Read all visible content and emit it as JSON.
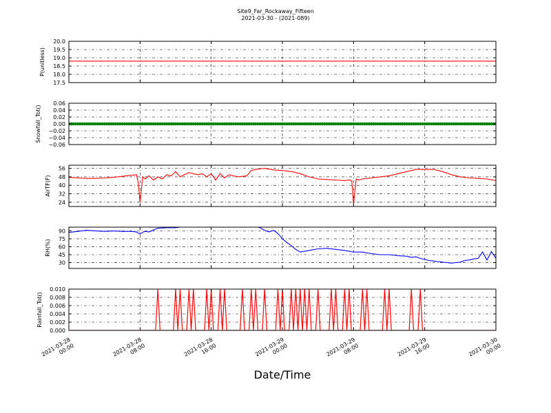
{
  "figure": {
    "title_line1": "Site9_Far_Rockaway_Fifteen",
    "title_line2": "2021-03-30 - (2021-089)",
    "xlabel": "Date/Time"
  },
  "chart_data": [
    {
      "type": "line",
      "ylabel": "P(unitless)",
      "ylim": [
        17.5,
        20.0
      ],
      "yticks": [
        "20.0",
        "19.5",
        "19.0",
        "18.5",
        "18.0",
        "17.5"
      ],
      "grid": true,
      "color": "#ff0000",
      "x_range": [
        "2021-03-28 00:00",
        "2021-03-30 00:00"
      ],
      "series": [
        {
          "x_hours": [
            0,
            48
          ],
          "values": [
            18.8,
            18.8
          ]
        }
      ]
    },
    {
      "type": "scatter",
      "ylabel": "Snowfall_Tot()",
      "ylim": [
        -0.06,
        0.06
      ],
      "yticks": [
        "0.06",
        "0.04",
        "0.02",
        "0.00",
        "−0.02",
        "−0.04",
        "−0.06"
      ],
      "grid": true,
      "color": "#008000",
      "x_range": [
        "2021-03-28 00:00",
        "2021-03-30 00:00"
      ],
      "series": [
        {
          "constant_value": 0.0,
          "x_start_hours": 0,
          "x_end_hours": 48,
          "interval_minutes": 15
        }
      ]
    },
    {
      "type": "line",
      "ylabel": "AirTF(F)",
      "ylim": [
        20,
        59
      ],
      "yticks": [
        "56",
        "48",
        "40",
        "32",
        "24"
      ],
      "grid": true,
      "color": "#ff0000",
      "x_range": [
        "2021-03-28 00:00",
        "2021-03-30 00:00"
      ],
      "series": [
        {
          "x_hours": [
            0,
            1,
            2,
            3,
            4,
            5,
            6,
            7,
            7.6,
            7.8,
            8,
            8.3,
            8.6,
            9,
            9.5,
            10,
            10.5,
            11,
            11.5,
            12,
            12.5,
            13,
            13.5,
            14,
            14.5,
            15,
            15.5,
            16,
            16.5,
            17,
            17.5,
            18,
            18.5,
            19,
            19.5,
            20,
            20.5,
            21,
            22,
            23,
            24,
            25,
            26,
            27,
            28,
            29,
            30,
            31,
            31.6,
            31.8,
            32,
            32.3,
            32.6,
            33,
            34,
            35,
            36,
            37,
            38,
            39,
            40,
            41,
            42,
            43,
            44,
            45,
            46,
            47,
            48
          ],
          "values": [
            47.5,
            47,
            46.5,
            46.5,
            47,
            47.5,
            48.5,
            49.5,
            50,
            42,
            24,
            48,
            46,
            49,
            45,
            48,
            46,
            50,
            49,
            53,
            48,
            50,
            52,
            51,
            50,
            51,
            48,
            51,
            45,
            51,
            47,
            50,
            49,
            48,
            48.5,
            49,
            54,
            55,
            56,
            54.5,
            54,
            53,
            51,
            48,
            46,
            45.5,
            45,
            44.5,
            45,
            44,
            22,
            46,
            45,
            46,
            47,
            48,
            49,
            51,
            53,
            55,
            55,
            55,
            53,
            50,
            48,
            47,
            46.5,
            46,
            44.5
          ]
        }
      ]
    },
    {
      "type": "line",
      "ylabel": "RH(%)",
      "ylim": [
        19,
        97
      ],
      "yticks": [
        "90",
        "75",
        "60",
        "45",
        "30"
      ],
      "grid": true,
      "color": "#0000ff",
      "x_range": [
        "2021-03-28 00:00",
        "2021-03-30 00:00"
      ],
      "series": [
        {
          "x_hours": [
            0,
            1,
            2,
            3,
            4,
            5,
            6,
            7,
            7.6,
            8,
            8.5,
            9,
            10,
            11,
            12,
            13,
            14,
            15,
            16,
            18,
            20,
            21,
            21.5,
            22,
            22.5,
            23,
            23.5,
            24,
            24.5,
            25,
            25.5,
            26,
            27,
            28,
            29,
            30,
            31,
            32,
            33,
            34,
            35,
            36,
            37,
            38,
            38.5,
            39,
            39.5,
            40,
            40.5,
            41,
            41.5,
            42,
            42.5,
            43,
            43.5,
            44,
            44.5,
            45,
            45.5,
            46,
            46.5,
            47,
            47.5,
            48
          ],
          "values": [
            87,
            89,
            91,
            90,
            89,
            90,
            89,
            89,
            88,
            84,
            89,
            88,
            95,
            96,
            96,
            98,
            98,
            98,
            98,
            99,
            98,
            98,
            96,
            91,
            88,
            91,
            85,
            75,
            68,
            62,
            55,
            50,
            53,
            56,
            57,
            55,
            53,
            50,
            50,
            47,
            45,
            45,
            43,
            42,
            40,
            41,
            38,
            36,
            34,
            33,
            32,
            31,
            30,
            29,
            30,
            31,
            34,
            35,
            37,
            38,
            50,
            35,
            51,
            38
          ]
        }
      ]
    },
    {
      "type": "line",
      "ylabel": "Rainfall_Tot()",
      "ylim": [
        0,
        0.01
      ],
      "yticks": [
        "0.010",
        "0.008",
        "0.006",
        "0.004",
        "0.002",
        "0.000"
      ],
      "grid": true,
      "color": "#ff0000",
      "x_range": [
        "2021-03-28 00:00",
        "2021-03-30 00:00"
      ],
      "series": [
        {
          "spike_value": 0.01,
          "spike_hours": [
            10,
            12,
            12.5,
            13.5,
            14,
            15.5,
            16,
            17,
            17.5,
            19.5,
            20.5,
            21,
            22,
            23.5,
            24,
            25,
            25.5,
            26,
            26.5,
            27,
            28,
            29.5,
            30,
            31,
            31.5,
            33,
            33.5,
            35.5,
            36,
            38.5,
            39.5
          ]
        }
      ]
    }
  ],
  "x_ticks": [
    {
      "line1": "2021-03-28",
      "line2": "00:00",
      "hour": 0
    },
    {
      "line1": "2021-03-28",
      "line2": "08:00",
      "hour": 8
    },
    {
      "line1": "2021-03-28",
      "line2": "16:00",
      "hour": 16
    },
    {
      "line1": "2021-03-29",
      "line2": "00:00",
      "hour": 24
    },
    {
      "line1": "2021-03-29",
      "line2": "08:00",
      "hour": 32
    },
    {
      "line1": "2021-03-29",
      "line2": "16:00",
      "hour": 40
    },
    {
      "line1": "2021-03-30",
      "line2": "00:00",
      "hour": 48
    }
  ]
}
